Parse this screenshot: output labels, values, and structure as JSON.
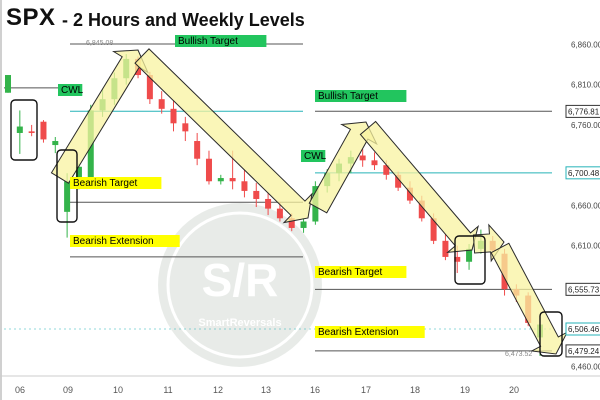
{
  "title": {
    "symbol": "SPX",
    "subtitle": "- 2 Hours and Weekly Levels"
  },
  "watermark": {
    "logo_text": "S/R",
    "brand": "SmartReversals"
  },
  "colors": {
    "up": "#33b34a",
    "down": "#ef4b4b",
    "wick": "#555555",
    "arrow_fill": "#f8f3a0",
    "arrow_stroke": "#2a2a2a",
    "bull_label": "#22c55e",
    "bear_label": "#ffff00",
    "teal": "#26b3b8",
    "dark_box": "#333333"
  },
  "chart_data": {
    "type": "candlestick",
    "x_labels": [
      "06",
      "09",
      "10",
      "11",
      "12",
      "13",
      "16",
      "17",
      "18",
      "19",
      "20"
    ],
    "y_range": [
      6458,
      6868
    ],
    "y_ticks": [
      "6,860.00",
      "6,810.00",
      "6,760.00",
      "6,660.00",
      "6,610.00",
      "6,460.00"
    ],
    "current_price_labels": [
      {
        "value": 6776.81,
        "text": "6,776.81",
        "color": "#333333"
      },
      {
        "value": 6700.48,
        "text": "6,700.48",
        "color": "#26b3b8"
      },
      {
        "value": 6555.73,
        "text": "6,555.73",
        "color": "#333333"
      },
      {
        "value": 6506.46,
        "text": "6,506.46",
        "color": "#26b3b8"
      },
      {
        "value": 6479.24,
        "text": "6,479.24",
        "color": "#333333"
      }
    ],
    "candles": [
      {
        "o": 6800,
        "h": 6822,
        "l": 6800,
        "c": 6822
      },
      {
        "o": 6750,
        "h": 6778,
        "l": 6724,
        "c": 6758
      },
      {
        "o": 6752,
        "h": 6760,
        "l": 6746,
        "c": 6750
      },
      {
        "o": 6764,
        "h": 6766,
        "l": 6738,
        "c": 6742
      },
      {
        "o": 6735,
        "h": 6745,
        "l": 6725,
        "c": 6740
      },
      {
        "o": 6652,
        "h": 6700,
        "l": 6620,
        "c": 6690
      },
      {
        "o": 6692,
        "h": 6712,
        "l": 6680,
        "c": 6708
      },
      {
        "o": 6692,
        "h": 6785,
        "l": 6685,
        "c": 6778
      },
      {
        "o": 6778,
        "h": 6805,
        "l": 6770,
        "c": 6792
      },
      {
        "o": 6792,
        "h": 6825,
        "l": 6785,
        "c": 6818
      },
      {
        "o": 6818,
        "h": 6848,
        "l": 6810,
        "c": 6842
      },
      {
        "o": 6842,
        "h": 6845,
        "l": 6818,
        "c": 6822
      },
      {
        "o": 6822,
        "h": 6826,
        "l": 6786,
        "c": 6792
      },
      {
        "o": 6792,
        "h": 6802,
        "l": 6774,
        "c": 6780
      },
      {
        "o": 6780,
        "h": 6790,
        "l": 6752,
        "c": 6762
      },
      {
        "o": 6762,
        "h": 6770,
        "l": 6740,
        "c": 6752
      },
      {
        "o": 6740,
        "h": 6750,
        "l": 6710,
        "c": 6718
      },
      {
        "o": 6718,
        "h": 6728,
        "l": 6686,
        "c": 6690
      },
      {
        "o": 6690,
        "h": 6698,
        "l": 6686,
        "c": 6694
      },
      {
        "o": 6694,
        "h": 6728,
        "l": 6680,
        "c": 6690
      },
      {
        "o": 6690,
        "h": 6704,
        "l": 6670,
        "c": 6678
      },
      {
        "o": 6678,
        "h": 6688,
        "l": 6658,
        "c": 6668
      },
      {
        "o": 6668,
        "h": 6676,
        "l": 6648,
        "c": 6656
      },
      {
        "o": 6656,
        "h": 6664,
        "l": 6640,
        "c": 6644
      },
      {
        "o": 6644,
        "h": 6650,
        "l": 6628,
        "c": 6632
      },
      {
        "o": 6632,
        "h": 6644,
        "l": 6626,
        "c": 6640
      },
      {
        "o": 6640,
        "h": 6690,
        "l": 6636,
        "c": 6684
      },
      {
        "o": 6684,
        "h": 6705,
        "l": 6676,
        "c": 6700
      },
      {
        "o": 6700,
        "h": 6718,
        "l": 6690,
        "c": 6712
      },
      {
        "o": 6712,
        "h": 6728,
        "l": 6700,
        "c": 6720
      },
      {
        "o": 6722,
        "h": 6730,
        "l": 6708,
        "c": 6716
      },
      {
        "o": 6716,
        "h": 6726,
        "l": 6704,
        "c": 6710
      },
      {
        "o": 6710,
        "h": 6716,
        "l": 6692,
        "c": 6698
      },
      {
        "o": 6698,
        "h": 6702,
        "l": 6678,
        "c": 6682
      },
      {
        "o": 6682,
        "h": 6690,
        "l": 6662,
        "c": 6666
      },
      {
        "o": 6666,
        "h": 6672,
        "l": 6640,
        "c": 6644
      },
      {
        "o": 6644,
        "h": 6650,
        "l": 6612,
        "c": 6616
      },
      {
        "o": 6616,
        "h": 6624,
        "l": 6592,
        "c": 6596
      },
      {
        "o": 6596,
        "h": 6610,
        "l": 6576,
        "c": 6590
      },
      {
        "o": 6590,
        "h": 6612,
        "l": 6580,
        "c": 6606
      },
      {
        "o": 6606,
        "h": 6630,
        "l": 6600,
        "c": 6616
      },
      {
        "o": 6616,
        "h": 6622,
        "l": 6596,
        "c": 6604
      },
      {
        "o": 6600,
        "h": 6606,
        "l": 6548,
        "c": 6556
      },
      {
        "o": 6556,
        "h": 6562,
        "l": 6540,
        "c": 6548
      },
      {
        "o": 6548,
        "h": 6552,
        "l": 6510,
        "c": 6514
      },
      {
        "o": 6496,
        "h": 6520,
        "l": 6473,
        "c": 6512
      }
    ],
    "levels": [
      {
        "value": 6845.08,
        "label": "6,845.08",
        "kind": "tick"
      },
      {
        "value": 6860.5,
        "label": "Bullish Target",
        "kind": "bull"
      },
      {
        "value": 6777,
        "label": "Bullish Target",
        "kind": "bull"
      },
      {
        "value": 6792,
        "label": "CWL",
        "kind": "cwl"
      },
      {
        "value": 6700.48,
        "label": "CWL",
        "kind": "cwl"
      },
      {
        "value": 6664,
        "label": "Bearish Target",
        "kind": "bear"
      },
      {
        "value": 6596,
        "label": "Bearish Extension",
        "kind": "bear"
      },
      {
        "value": 6555.73,
        "label": "Bearish Target",
        "kind": "bear"
      },
      {
        "value": 6479.24,
        "label": "Bearish Extension",
        "kind": "bear"
      },
      {
        "value": 6473.52,
        "label": "6,473.52",
        "kind": "tick"
      }
    ]
  }
}
